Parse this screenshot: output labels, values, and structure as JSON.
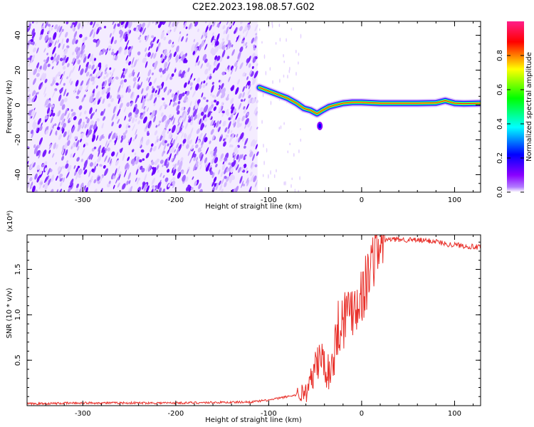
{
  "title": "C2E2.2023.198.08.57.G02",
  "chart_data": [
    {
      "type": "heatmap",
      "xlabel": "Height of straight line (km)",
      "ylabel": "Frequency (Hz)",
      "xlim": [
        -360,
        128
      ],
      "ylim": [
        -50,
        48
      ],
      "xticks": [
        -300,
        -200,
        -100,
        0,
        100
      ],
      "yticks": [
        -40,
        -20,
        0,
        20,
        40
      ],
      "colorbar": {
        "label": "Normalized spectral amplitude",
        "range": [
          0,
          1
        ],
        "ticks": [
          0.0,
          0.2,
          0.4,
          0.6,
          0.8
        ],
        "tick_labels": [
          "0.0",
          "0.2",
          "0.4",
          "0.6",
          "0.8"
        ],
        "colors": [
          "#ffffff",
          "#8a00ff",
          "#0000ff",
          "#00ffff",
          "#00ff00",
          "#ffff00",
          "#ff0000",
          "#ff00aa"
        ]
      },
      "noise_region_x": [
        -360,
        -112
      ],
      "signal_ridge": {
        "x": [
          -110,
          -100,
          -90,
          -80,
          -70,
          -62,
          -55,
          -48,
          -42,
          -35,
          -28,
          -20,
          -10,
          0,
          20,
          40,
          60,
          80,
          90,
          100,
          110,
          128
        ],
        "y": [
          10,
          8,
          6,
          4,
          1,
          -2,
          -3,
          -5,
          -3,
          -1,
          0,
          1,
          1.5,
          1.5,
          1,
          1,
          1,
          1.2,
          2.5,
          1,
          0.8,
          1
        ]
      },
      "grid": false
    },
    {
      "type": "line",
      "xlabel": "Height of straight line (km)",
      "ylabel": "SNR (10 * v/v)",
      "yscale_label": "(x10⁴)",
      "xlim": [
        -360,
        128
      ],
      "ylim": [
        0,
        1.88
      ],
      "xticks": [
        -300,
        -200,
        -100,
        0,
        100
      ],
      "yticks": [
        0.5,
        1.0,
        1.5
      ],
      "ytick_labels": [
        "0.5",
        "1.0",
        "1.5"
      ],
      "series": [
        {
          "color": "#e8302a",
          "x": [
            -360,
            -300,
            -200,
            -120,
            -110,
            -100,
            -90,
            -80,
            -70,
            -60,
            -55,
            -50,
            -45,
            -40,
            -35,
            -30,
            -25,
            -20,
            -15,
            -10,
            -5,
            0,
            5,
            10,
            15,
            20,
            25,
            30,
            40,
            60,
            80,
            90,
            100,
            110,
            128
          ],
          "y": [
            0.02,
            0.03,
            0.03,
            0.04,
            0.05,
            0.06,
            0.08,
            0.1,
            0.12,
            0.15,
            0.25,
            0.4,
            0.55,
            0.45,
            0.35,
            0.55,
            0.9,
            0.95,
            1.05,
            1.1,
            1.15,
            1.22,
            1.35,
            1.55,
            1.72,
            1.8,
            1.82,
            1.83,
            1.83,
            1.82,
            1.81,
            1.78,
            1.77,
            1.76,
            1.74
          ]
        }
      ],
      "grid": false
    }
  ]
}
